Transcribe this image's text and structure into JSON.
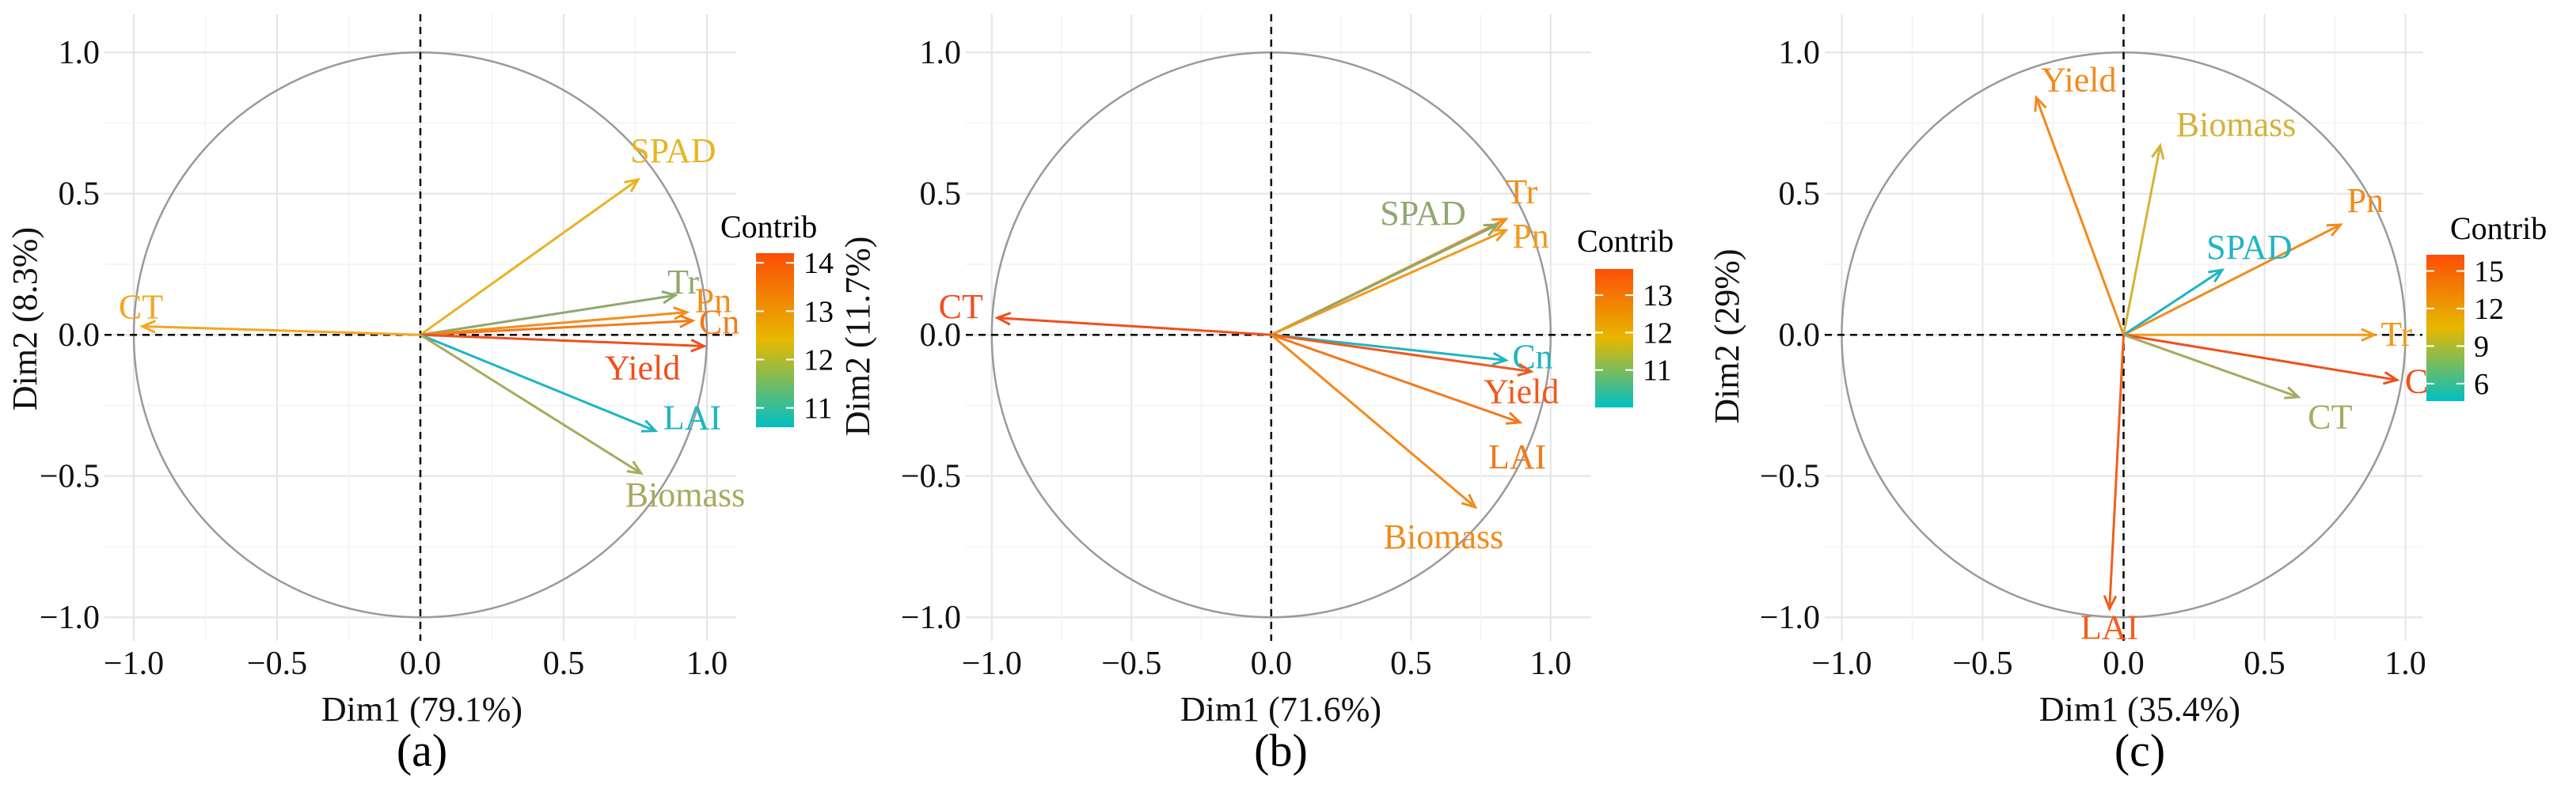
{
  "chart_data": [
    {
      "type": "pca-correlation-circle",
      "panel_label": "(a)",
      "xlabel": "Dim1 (79.1%)",
      "ylabel": "Dim2 (8.3%)",
      "xticks": [
        "−1.0",
        "−0.5",
        "0.0",
        "0.5",
        "1.0"
      ],
      "yticks": [
        "1.0",
        "0.5",
        "0.0",
        "−0.5",
        "−1.0"
      ],
      "xlim": [
        -1.1,
        1.1
      ],
      "ylim": [
        -1.05,
        1.1
      ],
      "legend": {
        "title": "Contrib",
        "ticks": [
          "14",
          "13",
          "12",
          "11"
        ],
        "range": [
          10.6,
          14.2
        ]
      },
      "variables": [
        {
          "name": "SPAD",
          "x": 0.76,
          "y": 0.55,
          "color": "#E7B423"
        },
        {
          "name": "Tr",
          "x": 0.89,
          "y": 0.14,
          "color": "#8FA86F"
        },
        {
          "name": "Pn",
          "x": 0.93,
          "y": 0.08,
          "color": "#F28E1C"
        },
        {
          "name": "Cn",
          "x": 0.95,
          "y": 0.05,
          "color": "#F27A1C"
        },
        {
          "name": "CT",
          "x": -0.97,
          "y": 0.03,
          "color": "#F4A623"
        },
        {
          "name": "Yield",
          "x": 0.99,
          "y": -0.04,
          "color": "#F04F1E"
        },
        {
          "name": "LAI",
          "x": 0.82,
          "y": -0.34,
          "color": "#1FB5C0"
        },
        {
          "name": "Biomass",
          "x": 0.77,
          "y": -0.49,
          "color": "#A8AA5E"
        }
      ]
    },
    {
      "type": "pca-correlation-circle",
      "panel_label": "(b)",
      "xlabel": "Dim1 (71.6%)",
      "ylabel": "Dim2 (11.7%)",
      "xticks": [
        "−1.0",
        "−0.5",
        "0.0",
        "0.5",
        "1.0"
      ],
      "yticks": [
        "1.0",
        "0.5",
        "0.0",
        "−0.5",
        "−1.0"
      ],
      "xlim": [
        -1.05,
        1.1
      ],
      "ylim": [
        -1.05,
        1.1
      ],
      "legend": {
        "title": "Contrib",
        "ticks": [
          "13",
          "12",
          "11"
        ],
        "range": [
          10.0,
          13.7
        ]
      },
      "variables": [
        {
          "name": "Tr",
          "x": 0.84,
          "y": 0.41,
          "color": "#F28E1C"
        },
        {
          "name": "SPAD",
          "x": 0.81,
          "y": 0.39,
          "color": "#8FA86F"
        },
        {
          "name": "Pn",
          "x": 0.84,
          "y": 0.37,
          "color": "#F29A1C"
        },
        {
          "name": "CT",
          "x": -0.98,
          "y": 0.06,
          "color": "#F04F1E"
        },
        {
          "name": "Cn",
          "x": 0.84,
          "y": -0.09,
          "color": "#1FB5C0"
        },
        {
          "name": "Yield",
          "x": 0.93,
          "y": -0.13,
          "color": "#F05A1E"
        },
        {
          "name": "LAI",
          "x": 0.89,
          "y": -0.31,
          "color": "#F27A1C"
        },
        {
          "name": "Biomass",
          "x": 0.73,
          "y": -0.61,
          "color": "#F28A1C"
        }
      ]
    },
    {
      "type": "pca-correlation-circle",
      "panel_label": "(c)",
      "xlabel": "Dim1 (35.4%)",
      "ylabel": "Dim2 (29%)",
      "xticks": [
        "−1.0",
        "−0.5",
        "0.0",
        "0.5",
        "1.0"
      ],
      "yticks": [
        "1.0",
        "0.5",
        "0.0",
        "−0.5",
        "−1.0"
      ],
      "xlim": [
        -1.1,
        1.1
      ],
      "ylim": [
        -1.05,
        1.1
      ],
      "legend": {
        "title": "Contrib",
        "ticks": [
          "15",
          "12",
          "9",
          "6"
        ],
        "range": [
          4.6,
          16.3
        ]
      },
      "variables": [
        {
          "name": "Yield",
          "x": -0.31,
          "y": 0.84,
          "color": "#F28A1C"
        },
        {
          "name": "Biomass",
          "x": 0.13,
          "y": 0.67,
          "color": "#D4B23A"
        },
        {
          "name": "Pn",
          "x": 0.77,
          "y": 0.39,
          "color": "#F28A1C"
        },
        {
          "name": "SPAD",
          "x": 0.35,
          "y": 0.23,
          "color": "#1FB5C0"
        },
        {
          "name": "Tr",
          "x": 0.89,
          "y": 0.0,
          "color": "#F29A1C"
        },
        {
          "name": "Cn",
          "x": 0.97,
          "y": -0.16,
          "color": "#F04F1E"
        },
        {
          "name": "CT",
          "x": 0.62,
          "y": -0.22,
          "color": "#A8AA5E"
        },
        {
          "name": "LAI",
          "x": -0.05,
          "y": -0.97,
          "color": "#F0601E"
        }
      ]
    }
  ]
}
